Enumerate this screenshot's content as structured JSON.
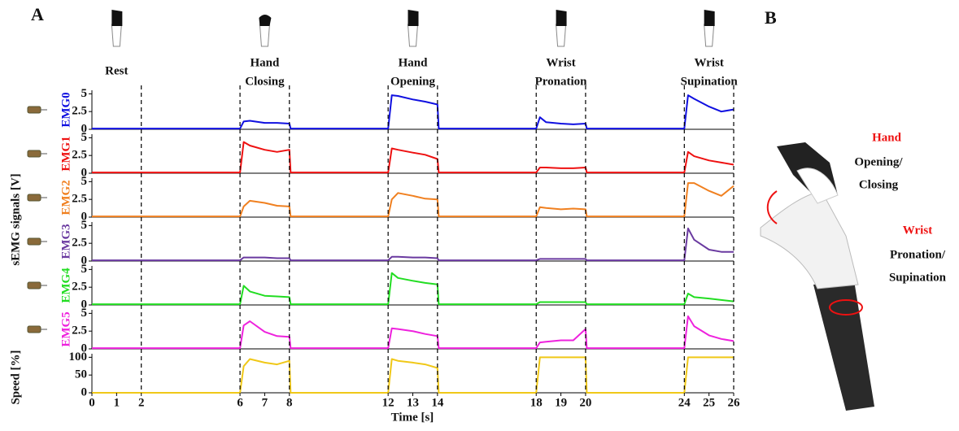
{
  "chart_data": {
    "type": "line",
    "panel_label": "A",
    "gestures": [
      [
        "Rest"
      ],
      [
        "Hand",
        "Closing"
      ],
      [
        "Hand",
        "Opening"
      ],
      [
        "Wrist",
        "Pronation"
      ],
      [
        "Wrist",
        "Supination"
      ]
    ],
    "ylabel": "sEMG signals [V]",
    "xlabel": "Time [s]",
    "xlim": [
      0,
      26
    ],
    "xticks": [
      0,
      1,
      2,
      6,
      7,
      8,
      12,
      13,
      14,
      18,
      19,
      20,
      24,
      25,
      26
    ],
    "markers": [
      2,
      6,
      8,
      12,
      14,
      18,
      20,
      24,
      26
    ],
    "x": [
      0,
      6,
      6.15,
      6.4,
      7,
      7.5,
      8,
      8.05,
      12,
      12.15,
      12.4,
      13,
      13.5,
      14,
      14.05,
      18,
      18.15,
      18.4,
      19,
      19.5,
      20,
      20.05,
      24,
      24.15,
      24.4,
      25,
      25.5,
      26
    ],
    "subplots": [
      {
        "name": "EMG0",
        "color": "#1010e0",
        "ylim": [
          0,
          5.5
        ],
        "yticks": [
          0,
          2.5,
          5
        ],
        "values": [
          0.1,
          0.1,
          1.1,
          1.2,
          0.9,
          0.9,
          0.8,
          0.1,
          0.1,
          4.8,
          4.7,
          4.2,
          3.9,
          3.5,
          0.1,
          0.1,
          1.7,
          1.0,
          0.8,
          0.7,
          0.8,
          0.1,
          0.1,
          4.8,
          4.3,
          3.2,
          2.5,
          2.8
        ]
      },
      {
        "name": "EMG1",
        "color": "#ee1111",
        "ylim": [
          0,
          5.5
        ],
        "yticks": [
          0,
          2.5,
          5
        ],
        "values": [
          0.1,
          0.1,
          4.4,
          3.9,
          3.3,
          3.0,
          3.3,
          0.1,
          0.1,
          3.5,
          3.3,
          2.9,
          2.6,
          2.0,
          0.1,
          0.1,
          0.8,
          0.8,
          0.7,
          0.7,
          0.8,
          0.1,
          0.1,
          3.0,
          2.4,
          1.8,
          1.5,
          1.2
        ]
      },
      {
        "name": "EMG2",
        "color": "#f08020",
        "ylim": [
          0,
          5.5
        ],
        "yticks": [
          0,
          2.5,
          5
        ],
        "values": [
          0.1,
          0.1,
          1.5,
          2.3,
          2.0,
          1.6,
          1.5,
          0.1,
          0.1,
          2.5,
          3.4,
          3.0,
          2.6,
          2.5,
          0.1,
          0.1,
          1.4,
          1.3,
          1.1,
          1.2,
          1.1,
          0.1,
          0.1,
          4.8,
          4.8,
          3.7,
          3.0,
          4.4
        ]
      },
      {
        "name": "EMG3",
        "color": "#6a3aa0",
        "ylim": [
          0,
          5.5
        ],
        "yticks": [
          0,
          2.5,
          5
        ],
        "values": [
          0.1,
          0.1,
          0.5,
          0.5,
          0.5,
          0.4,
          0.4,
          0.1,
          0.1,
          0.6,
          0.6,
          0.5,
          0.5,
          0.4,
          0.1,
          0.1,
          0.3,
          0.3,
          0.3,
          0.3,
          0.3,
          0.1,
          0.1,
          4.6,
          3.0,
          1.6,
          1.3,
          1.3
        ]
      },
      {
        "name": "EMG4",
        "color": "#22dd22",
        "ylim": [
          0,
          5.5
        ],
        "yticks": [
          0,
          2.5,
          5
        ],
        "values": [
          0.1,
          0.1,
          2.7,
          1.9,
          1.3,
          1.2,
          1.1,
          0.1,
          0.1,
          4.5,
          3.8,
          3.4,
          3.1,
          2.9,
          0.1,
          0.1,
          0.4,
          0.4,
          0.4,
          0.4,
          0.4,
          0.1,
          0.1,
          1.6,
          1.1,
          0.9,
          0.7,
          0.5
        ]
      },
      {
        "name": "EMG5",
        "color": "#ee22dd",
        "ylim": [
          0,
          5.5
        ],
        "yticks": [
          0,
          2.5,
          5
        ],
        "values": [
          0.1,
          0.1,
          3.3,
          3.9,
          2.4,
          1.8,
          1.7,
          0.1,
          0.1,
          2.9,
          2.8,
          2.5,
          2.1,
          1.8,
          0.1,
          0.1,
          0.9,
          1.0,
          1.2,
          1.2,
          2.8,
          0.1,
          0.1,
          4.6,
          3.2,
          1.9,
          1.4,
          1.1
        ]
      },
      {
        "name": "Speed [%]",
        "color": "#f0c818",
        "ylim": [
          0,
          110
        ],
        "yticks": [
          0,
          50,
          100
        ],
        "values": [
          0,
          0,
          75,
          95,
          85,
          80,
          90,
          0,
          0,
          95,
          90,
          85,
          80,
          70,
          0,
          0,
          100,
          100,
          100,
          100,
          100,
          0,
          0,
          100,
          100,
          100,
          100,
          100
        ]
      }
    ]
  },
  "panel_b": {
    "label": "B",
    "hand": "Hand",
    "hand_motion": [
      "Opening/",
      "Closing"
    ],
    "wrist": "Wrist",
    "wrist_motion": [
      "Pronation/",
      "Supination"
    ]
  }
}
